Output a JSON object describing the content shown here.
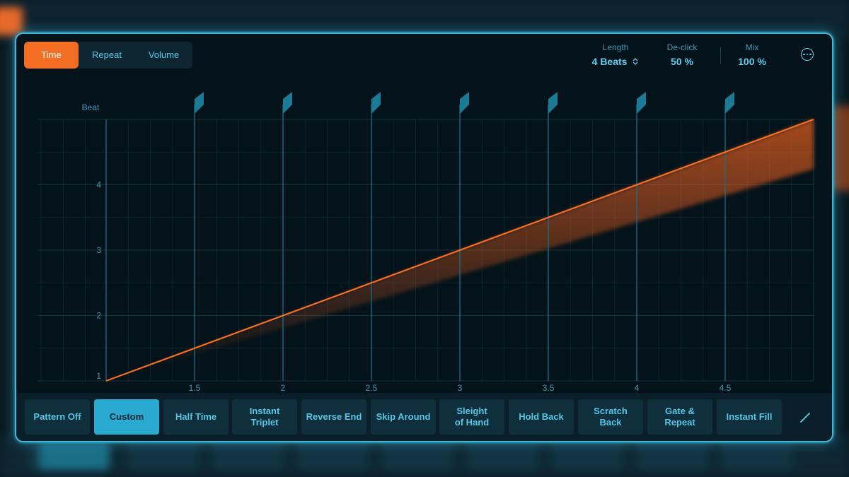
{
  "tabs": [
    {
      "label": "Time",
      "active": true
    },
    {
      "label": "Repeat",
      "active": false
    },
    {
      "label": "Volume",
      "active": false
    }
  ],
  "params": {
    "length": {
      "label": "Length",
      "value": "4 Beats"
    },
    "declick": {
      "label": "De-click",
      "value": "50 %"
    },
    "mix": {
      "label": "Mix",
      "value": "100 %"
    }
  },
  "icons": {
    "more": "more-icon",
    "stepper": "stepper-icon",
    "pencil": "pencil-icon",
    "marker": "flag-marker-icon"
  },
  "colors": {
    "accent": "#f36d22",
    "cyan": "#3fb8dc",
    "panel": "#04121a"
  },
  "chart_data": {
    "type": "line",
    "ylabel": "Beat",
    "x_ticks": [
      "1.5",
      "2",
      "2.5",
      "3",
      "3.5",
      "4",
      "4.5"
    ],
    "y_ticks": [
      "1",
      "2",
      "3",
      "4"
    ],
    "xlim": [
      1,
      5
    ],
    "ylim": [
      1,
      5
    ],
    "series": [
      {
        "x": [
          1,
          5
        ],
        "y": [
          1,
          5
        ]
      }
    ]
  },
  "presets": [
    {
      "label": "Pattern Off",
      "active": false
    },
    {
      "label": "Custom",
      "active": true
    },
    {
      "label": "Half Time",
      "active": false
    },
    {
      "label": "Instant\nTriplet",
      "active": false
    },
    {
      "label": "Reverse End",
      "active": false
    },
    {
      "label": "Skip Around",
      "active": false
    },
    {
      "label": "Sleight\nof Hand",
      "active": false
    },
    {
      "label": "Hold Back",
      "active": false
    },
    {
      "label": "Scratch\nBack",
      "active": false
    },
    {
      "label": "Gate &\nRepeat",
      "active": false
    },
    {
      "label": "Instant Fill",
      "active": false
    }
  ]
}
